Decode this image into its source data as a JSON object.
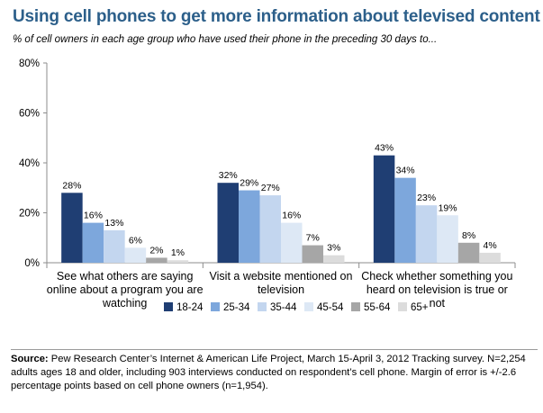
{
  "title": "Using cell phones to get more information about televised content",
  "subtitle": "% of cell owners in each age group who have used their phone in the preceding 30 days to...",
  "colors": {
    "series": [
      "#1f3e73",
      "#7da7dc",
      "#c3d6ef",
      "#dde8f5",
      "#a6a6a6",
      "#dcdcdc"
    ],
    "title": "#2c5f8a"
  },
  "chart_data": {
    "type": "bar",
    "categories": [
      [
        "See what others are saying",
        "online about a program you are",
        "watching"
      ],
      [
        "Visit a website mentioned on",
        "television"
      ],
      [
        "Check whether something you",
        "heard on television is true or",
        "not"
      ]
    ],
    "series": [
      {
        "name": "18-24",
        "values": [
          28,
          32,
          43
        ]
      },
      {
        "name": "25-34",
        "values": [
          16,
          29,
          34
        ]
      },
      {
        "name": "35-44",
        "values": [
          13,
          27,
          23
        ]
      },
      {
        "name": "45-54",
        "values": [
          6,
          16,
          19
        ]
      },
      {
        "name": "55-64",
        "values": [
          2,
          7,
          8
        ]
      },
      {
        "name": "65+",
        "values": [
          1,
          3,
          4
        ]
      }
    ],
    "data_labels": [
      [
        "28%",
        "32%",
        "43%"
      ],
      [
        "16%",
        "29%",
        "34%"
      ],
      [
        "13%",
        "27%",
        "23%"
      ],
      [
        "6%",
        "16%",
        "19%"
      ],
      [
        "2%",
        "7%",
        "8%"
      ],
      [
        "1%",
        "3%",
        "4%"
      ]
    ],
    "y_ticks": [
      "0%",
      "20%",
      "40%",
      "60%",
      "80%"
    ],
    "ylim": [
      0,
      80
    ],
    "legend_position": "bottom",
    "grid": false
  },
  "source": {
    "label": "Source:",
    "text": "Pew Research Center’s Internet & American Life Project, March 15-April 3, 2012 Tracking survey. N=2,254 adults ages 18 and older, including 903 interviews conducted on respondent’s cell phone. Margin of error is +/-2.6 percentage points based on cell phone owners (n=1,954)."
  }
}
